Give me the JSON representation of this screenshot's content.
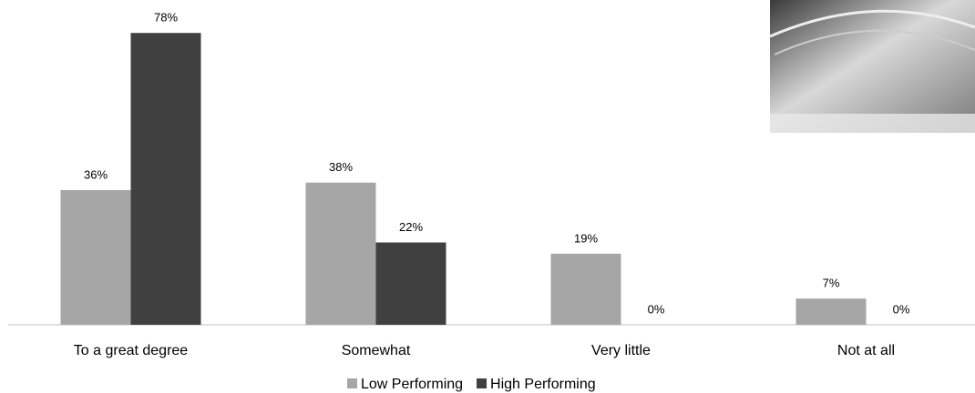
{
  "chart_data": {
    "type": "bar",
    "categories": [
      "To a great degree",
      "Somewhat",
      "Very little",
      "Not at all"
    ],
    "series": [
      {
        "name": "Low Performing",
        "color": "#a6a6a6",
        "values": [
          36,
          38,
          19,
          7
        ],
        "value_labels": [
          "36%",
          "38%",
          "19%",
          "7%"
        ]
      },
      {
        "name": "High Performing",
        "color": "#404040",
        "values": [
          78,
          22,
          0,
          0
        ],
        "value_labels": [
          "78%",
          "22%",
          "0%",
          "0%"
        ]
      }
    ],
    "ylim": [
      0,
      80
    ],
    "grid": false,
    "legend": "bottom"
  }
}
